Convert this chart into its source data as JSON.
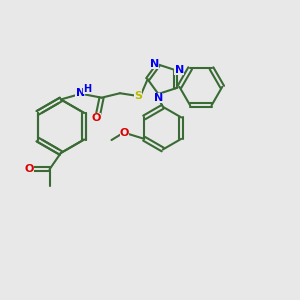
{
  "bg_color": "#e8e8e8",
  "bond_color": "#3a6b35",
  "bond_width": 1.5,
  "n_color": "#0000ee",
  "o_color": "#dd0000",
  "s_color": "#bbbb00",
  "figsize": [
    3.0,
    3.0
  ],
  "dpi": 100,
  "xlim": [
    0,
    10
  ],
  "ylim": [
    0,
    10
  ]
}
